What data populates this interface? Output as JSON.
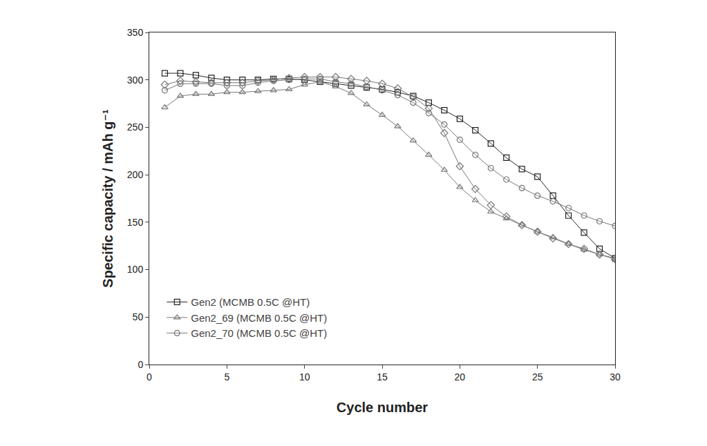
{
  "chart_data": {
    "type": "line",
    "x_label": "Cycle number",
    "y_label": "Specific capacity / mAh g⁻¹",
    "x": [
      1,
      2,
      3,
      4,
      5,
      6,
      7,
      8,
      9,
      10,
      11,
      12,
      13,
      14,
      15,
      16,
      17,
      18,
      19,
      20,
      21,
      22,
      23,
      24,
      25,
      26,
      27,
      28,
      29,
      30
    ],
    "series": [
      {
        "name": "Gen2 (MCMB 0.5C @HT)",
        "color": "#222222",
        "marker": "square",
        "values": [
          307,
          307,
          305,
          302,
          300,
          300,
          300,
          301,
          301,
          300,
          298,
          296,
          294,
          292,
          290,
          287,
          283,
          276,
          268,
          259,
          247,
          233,
          218,
          206,
          198,
          178,
          157,
          139,
          122,
          112
        ]
      },
      {
        "name": "Gen2_69 (MCMB 0.5C @HT)",
        "color": "#777777",
        "marker": "triangle",
        "values": [
          271,
          283,
          285,
          285,
          287,
          287,
          288,
          289,
          290,
          295,
          298,
          293,
          286,
          274,
          263,
          251,
          236,
          221,
          205,
          187,
          173,
          161,
          154,
          147,
          140,
          134,
          127,
          121,
          116,
          112
        ]
      },
      {
        "name": "Gen2_70 (MCMB 0.5C @HT)",
        "color": "#777777",
        "marker": "circle",
        "values": [
          289,
          296,
          296,
          296,
          294,
          294,
          297,
          299,
          300,
          301,
          301,
          298,
          296,
          293,
          289,
          284,
          276,
          265,
          253,
          237,
          221,
          207,
          195,
          186,
          178,
          172,
          165,
          157,
          151,
          146
        ]
      },
      {
        "color": "#777777",
        "marker": "diamond",
        "values": [
          295,
          299,
          298,
          297,
          297,
          297,
          299,
          300,
          302,
          303,
          303,
          303,
          301,
          299,
          296,
          291,
          282,
          270,
          244,
          209,
          185,
          168,
          156,
          147,
          140,
          133,
          127,
          122,
          116,
          111
        ]
      }
    ],
    "xlim": [
      0,
      30
    ],
    "xticks": [
      0,
      5,
      10,
      15,
      20,
      25,
      30
    ],
    "ylim": [
      0,
      350
    ],
    "yticks": [
      0,
      50,
      100,
      150,
      200,
      250,
      300,
      350
    ],
    "grid": false,
    "legend": "lower left"
  }
}
